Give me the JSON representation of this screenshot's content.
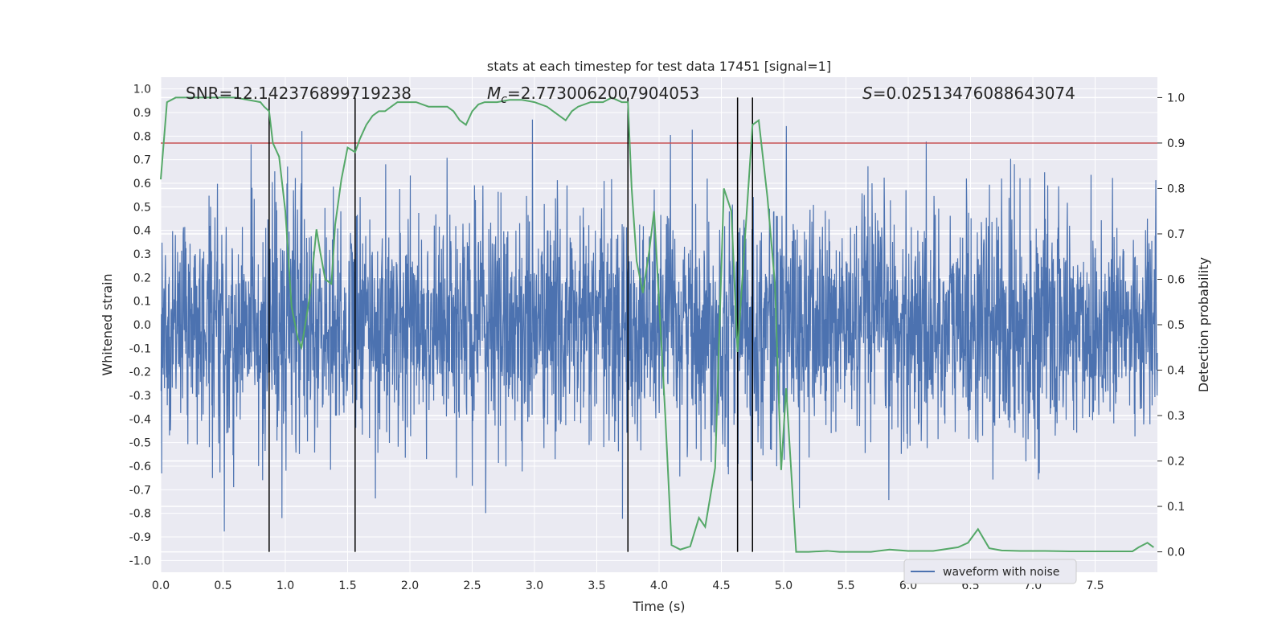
{
  "chart_data": {
    "type": "line",
    "title": "stats at each timestep for test data 17451 [signal=1]",
    "xlabel": "Time (s)",
    "ylabel_left": "Whitened strain",
    "ylabel_right": "Detection probability",
    "xlim": [
      0.0,
      8.0
    ],
    "ylim_left": [
      -1.05,
      1.05
    ],
    "ylim_right": [
      -0.045,
      1.045
    ],
    "x_ticks": [
      "0.0",
      "0.5",
      "1.0",
      "1.5",
      "2.0",
      "2.5",
      "3.0",
      "3.5",
      "4.0",
      "4.5",
      "5.0",
      "5.5",
      "6.0",
      "6.5",
      "7.0",
      "7.5"
    ],
    "y_ticks_left": [
      "-1.0",
      "-0.9",
      "-0.8",
      "-0.7",
      "-0.6",
      "-0.5",
      "-0.4",
      "-0.3",
      "-0.2",
      "-0.1",
      "0.0",
      "0.1",
      "0.2",
      "0.3",
      "0.4",
      "0.5",
      "0.6",
      "0.7",
      "0.8",
      "0.9",
      "1.0"
    ],
    "y_ticks_right": [
      "0.0",
      "0.1",
      "0.2",
      "0.3",
      "0.4",
      "0.5",
      "0.6",
      "0.7",
      "0.8",
      "0.9",
      "1.0"
    ],
    "annotations": {
      "snr": "SNR=12.142376899719238",
      "mc_symbol": "M",
      "mc_sub": "c",
      "mc_value": "=2.7730062007904053",
      "s_symbol": "S",
      "s_value": "=0.02513476088643074"
    },
    "threshold": {
      "value": 0.9,
      "axis": "right",
      "color": "#c44e52"
    },
    "vertical_lines": [
      0.87,
      1.56,
      3.75,
      4.63,
      4.75
    ],
    "legend": {
      "position": "lower-right",
      "entries": [
        "waveform with noise"
      ]
    },
    "series": [
      {
        "name": "waveform with noise",
        "axis": "left",
        "color": "#4c72b0",
        "kind": "noise",
        "typical_amplitude": 0.45,
        "max_amplitude": 1.0,
        "min_value": -0.92
      },
      {
        "name": "detection probability",
        "axis": "right",
        "color": "#55a868",
        "x": [
          0.0,
          0.05,
          0.12,
          0.2,
          0.3,
          0.4,
          0.5,
          0.6,
          0.7,
          0.8,
          0.83,
          0.87,
          0.9,
          0.95,
          1.0,
          1.05,
          1.1,
          1.13,
          1.2,
          1.25,
          1.28,
          1.32,
          1.37,
          1.4,
          1.45,
          1.5,
          1.56,
          1.6,
          1.65,
          1.7,
          1.75,
          1.8,
          1.85,
          1.9,
          1.95,
          2.0,
          2.05,
          2.1,
          2.15,
          2.2,
          2.3,
          2.35,
          2.4,
          2.45,
          2.5,
          2.55,
          2.6,
          2.7,
          2.8,
          2.9,
          3.0,
          3.1,
          3.15,
          3.2,
          3.25,
          3.3,
          3.35,
          3.45,
          3.55,
          3.62,
          3.7,
          3.75,
          3.78,
          3.82,
          3.87,
          3.92,
          3.96,
          4.05,
          4.1,
          4.17,
          4.25,
          4.32,
          4.37,
          4.45,
          4.52,
          4.58,
          4.63,
          4.68,
          4.75,
          4.8,
          4.87,
          4.93,
          4.98,
          5.02,
          5.1,
          5.2,
          5.35,
          5.45,
          5.55,
          5.7,
          5.85,
          6.0,
          6.2,
          6.4,
          6.48,
          6.56,
          6.65,
          6.75,
          6.9,
          7.1,
          7.3,
          7.5,
          7.7,
          7.8,
          7.85,
          7.92,
          7.97
        ],
        "values": [
          0.82,
          0.99,
          1.0,
          1.0,
          1.0,
          1.0,
          1.0,
          1.0,
          0.995,
          0.99,
          0.98,
          0.97,
          0.9,
          0.87,
          0.75,
          0.54,
          0.47,
          0.45,
          0.57,
          0.71,
          0.66,
          0.6,
          0.59,
          0.72,
          0.82,
          0.89,
          0.88,
          0.91,
          0.94,
          0.96,
          0.97,
          0.97,
          0.98,
          0.99,
          0.99,
          0.99,
          0.99,
          0.985,
          0.98,
          0.98,
          0.98,
          0.97,
          0.95,
          0.94,
          0.97,
          0.985,
          0.99,
          0.99,
          0.995,
          0.995,
          0.99,
          0.98,
          0.97,
          0.96,
          0.95,
          0.97,
          0.98,
          0.99,
          0.99,
          1.0,
          0.99,
          0.99,
          0.8,
          0.64,
          0.57,
          0.66,
          0.75,
          0.3,
          0.015,
          0.005,
          0.012,
          0.075,
          0.055,
          0.185,
          0.8,
          0.75,
          0.44,
          0.65,
          0.94,
          0.95,
          0.78,
          0.59,
          0.18,
          0.36,
          0.0,
          0.0,
          0.002,
          0.0,
          0.0,
          0.0,
          0.005,
          0.002,
          0.002,
          0.01,
          0.02,
          0.05,
          0.008,
          0.003,
          0.002,
          0.002,
          0.001,
          0.001,
          0.001,
          0.001,
          0.01,
          0.02,
          0.01
        ]
      }
    ]
  }
}
